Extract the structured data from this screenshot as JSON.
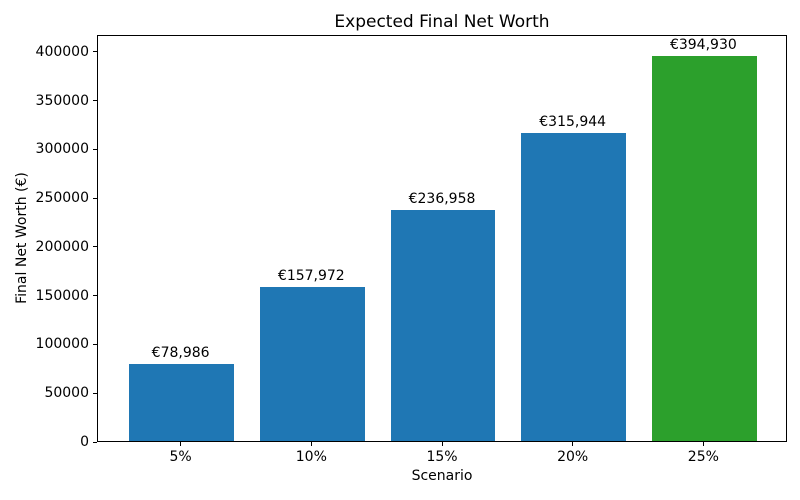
{
  "chart_data": {
    "type": "bar",
    "title": "Expected Final Net Worth",
    "xlabel": "Scenario",
    "ylabel": "Final Net Worth (€)",
    "categories": [
      "5%",
      "10%",
      "15%",
      "20%",
      "25%"
    ],
    "values": [
      78986,
      157972,
      236958,
      315944,
      394930
    ],
    "value_labels": [
      "€78,986",
      "€157,972",
      "€236,958",
      "€315,944",
      "€394,930"
    ],
    "bar_colors": [
      "#1f77b4",
      "#1f77b4",
      "#1f77b4",
      "#1f77b4",
      "#2ca02c"
    ],
    "colors": {
      "default_bar": "#1f77b4",
      "highlight_bar": "#2ca02c",
      "text": "#000000",
      "background": "#ffffff"
    },
    "yticks": [
      0,
      50000,
      100000,
      150000,
      200000,
      250000,
      300000,
      350000,
      400000
    ],
    "ylim": [
      0,
      417435
    ],
    "grid": false,
    "legend": null
  }
}
